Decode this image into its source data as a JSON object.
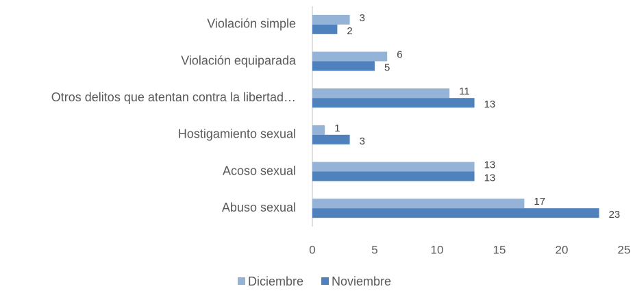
{
  "chart_data": {
    "type": "hbar",
    "categories": [
      "Violación simple",
      "Violación equiparada",
      "Otros delitos que atentan contra la libertad…",
      "Hostigamiento sexual",
      "Acoso sexual",
      "Abuso sexual"
    ],
    "series": [
      {
        "name": "Diciembre",
        "color": "#95b3d7",
        "values": [
          3,
          6,
          11,
          1,
          13,
          17
        ]
      },
      {
        "name": "Noviembre",
        "color": "#4f81bd",
        "values": [
          2,
          5,
          13,
          3,
          13,
          23
        ]
      }
    ],
    "xlim": [
      0,
      25
    ],
    "xticks": [
      0,
      5,
      10,
      15,
      20,
      25
    ],
    "grid": false,
    "legend": "bottom"
  }
}
